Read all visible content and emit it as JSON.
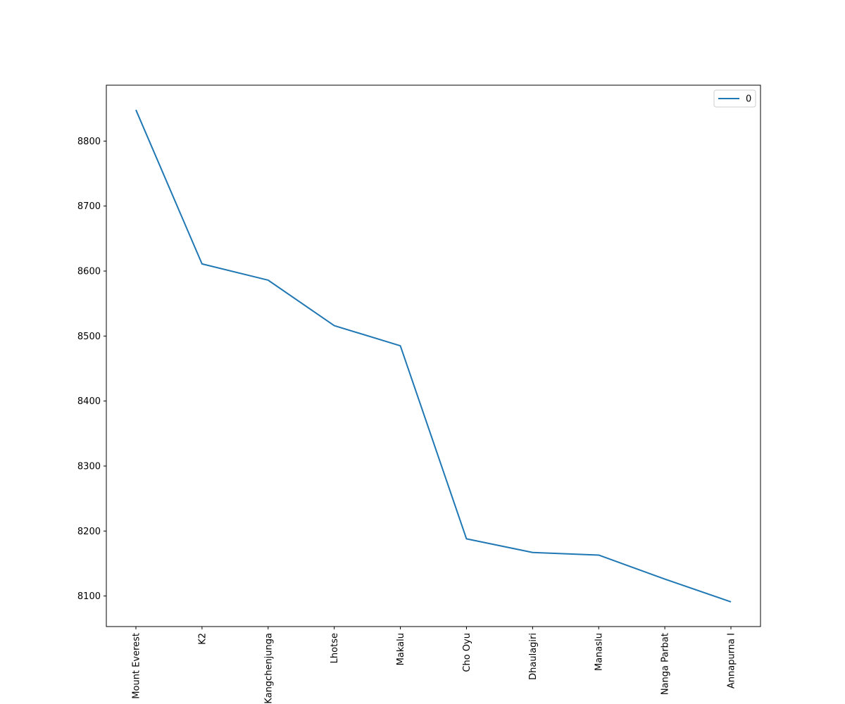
{
  "chart_data": {
    "type": "line",
    "categories": [
      "Mount Everest",
      "K2",
      "Kangchenjunga",
      "Lhotse",
      "Makalu",
      "Cho Oyu",
      "Dhaulagiri",
      "Manaslu",
      "Nanga Parbat",
      "Annapurna I"
    ],
    "series": [
      {
        "name": "0",
        "values": [
          8848,
          8611,
          8586,
          8516,
          8485,
          8188,
          8167,
          8163,
          8126,
          8091
        ],
        "color": "#1f77b4"
      }
    ],
    "title": "",
    "xlabel": "",
    "ylabel": "",
    "ylim": [
      8053,
      8886
    ],
    "yticks": [
      8100,
      8200,
      8300,
      8400,
      8500,
      8600,
      8700,
      8800
    ],
    "xtick_rotation": "vertical",
    "grid": false,
    "legend_position": "top-right"
  }
}
